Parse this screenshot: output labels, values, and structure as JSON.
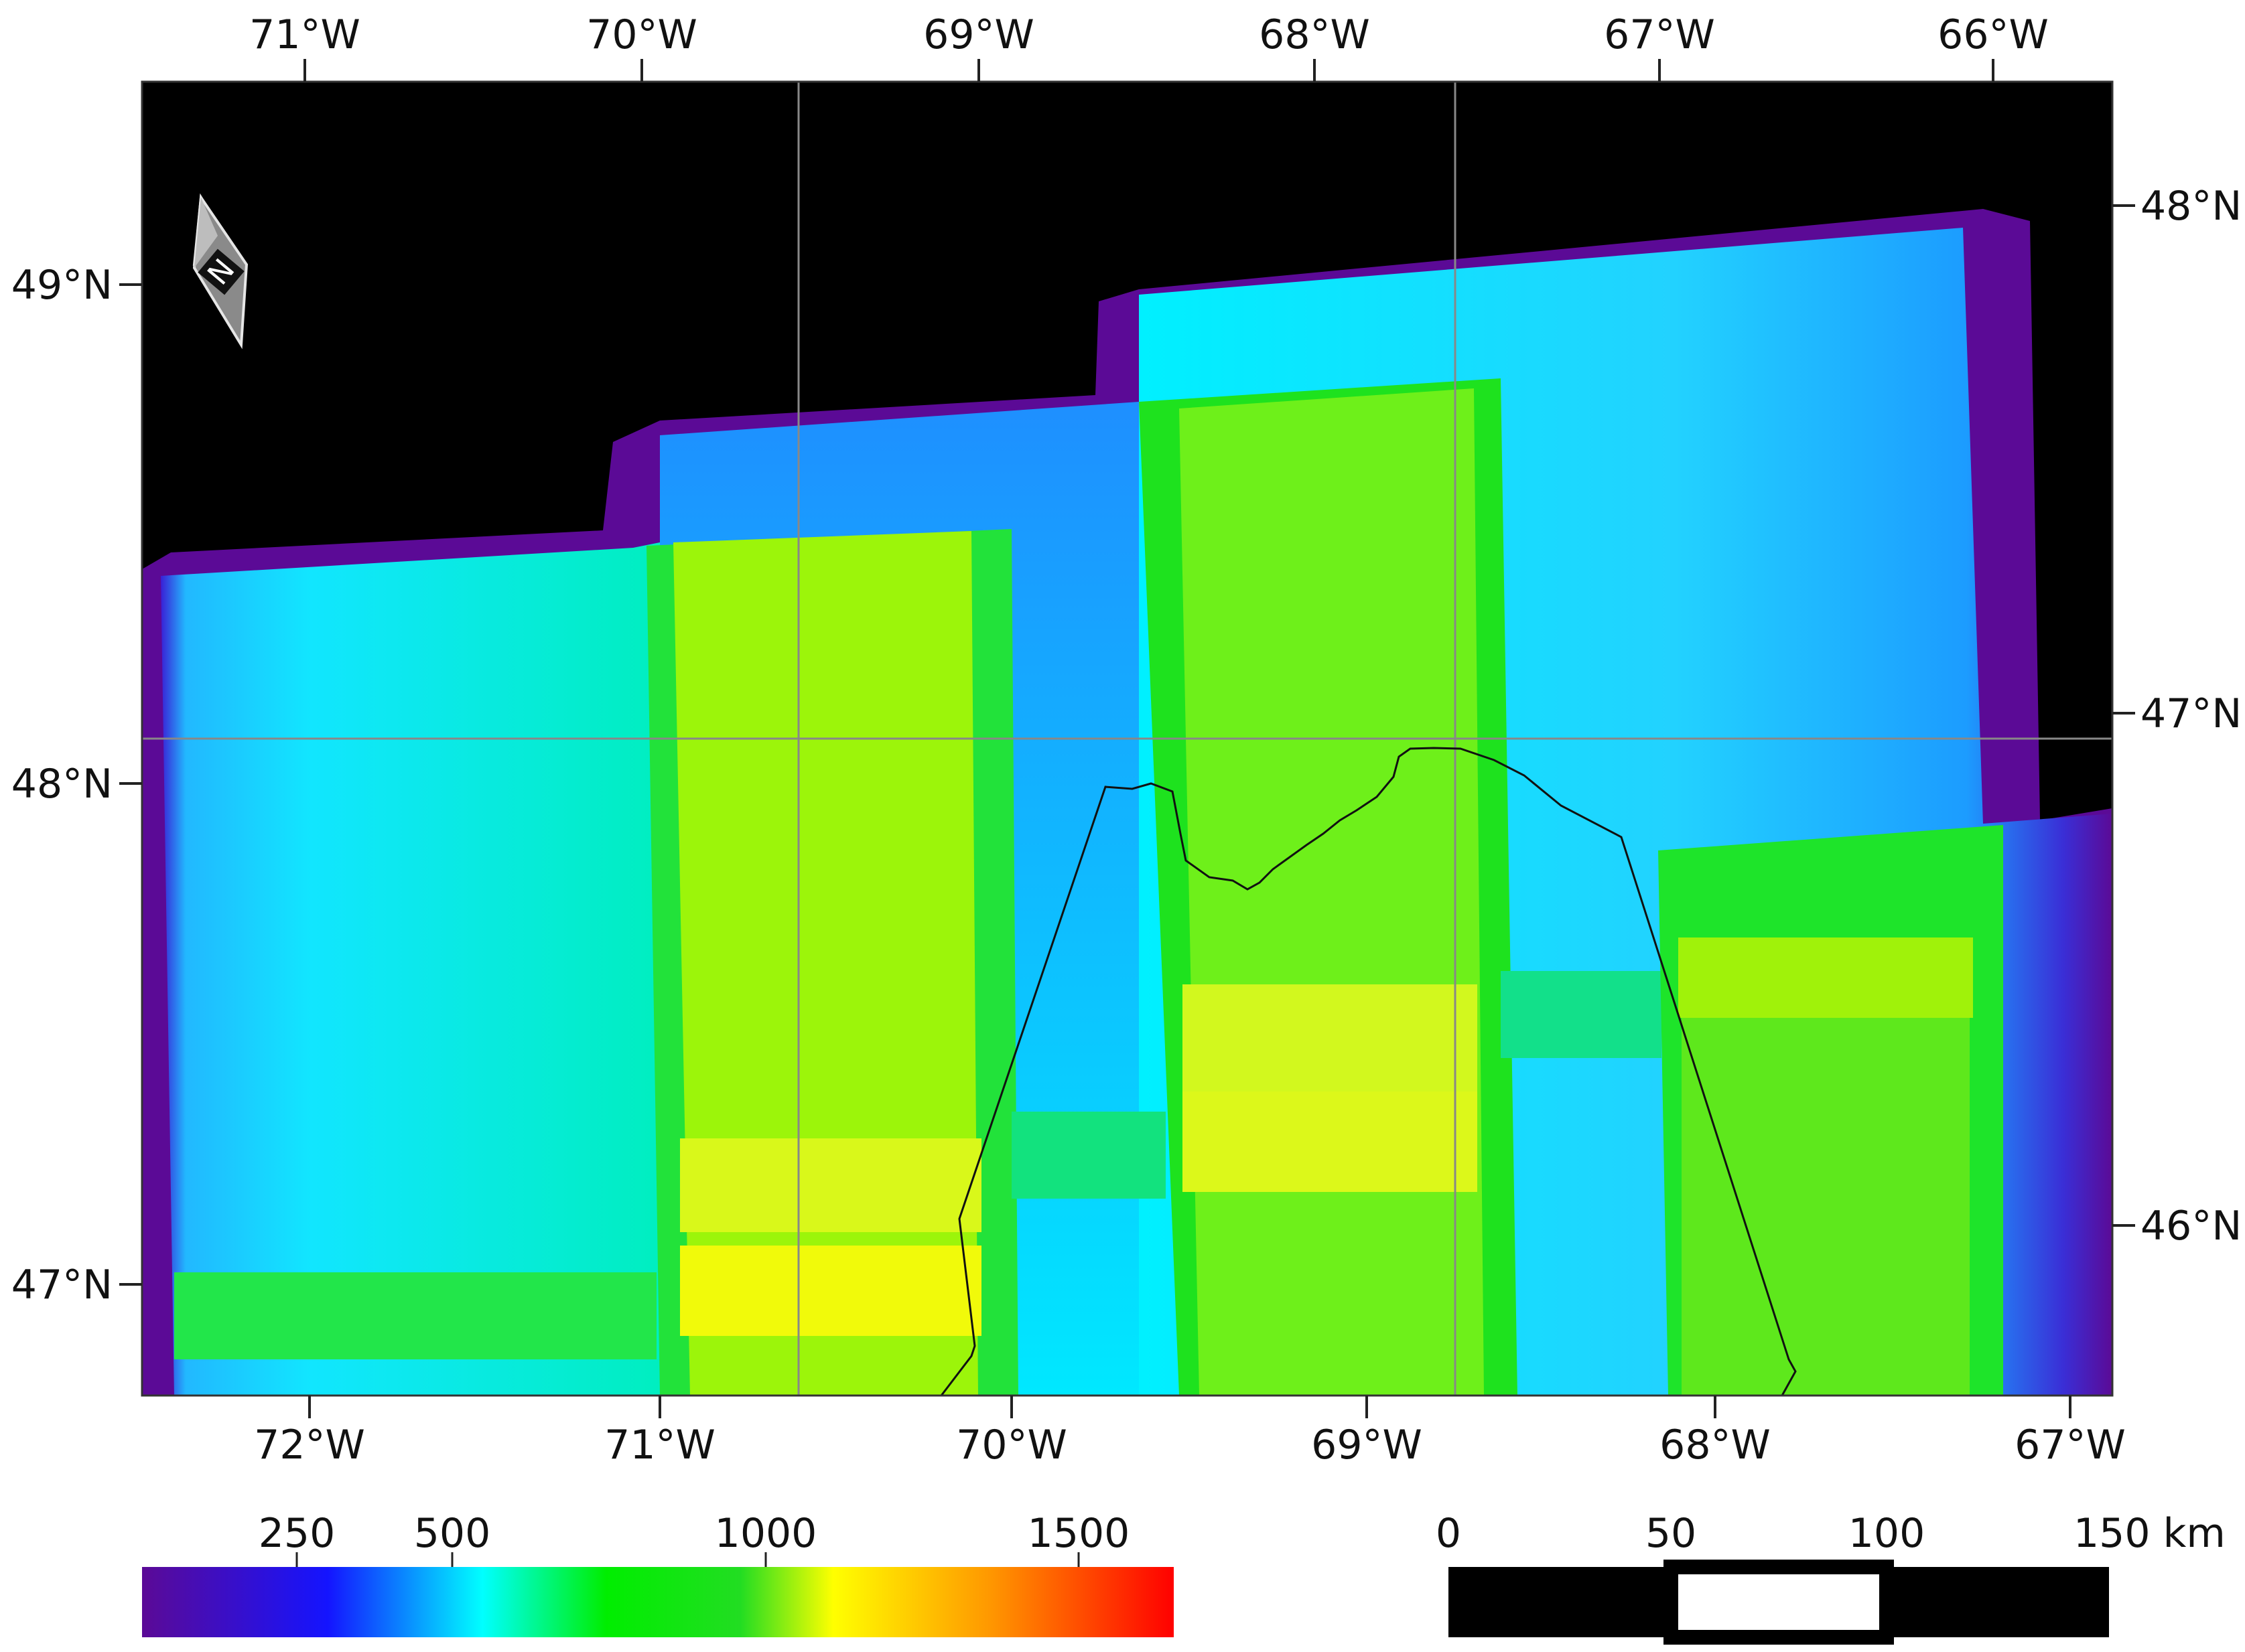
{
  "map": {
    "top_lon_labels": [
      "71°W",
      "70°W",
      "69°W",
      "68°W",
      "67°W",
      "66°W"
    ],
    "bottom_lon_labels": [
      "72°W",
      "71°W",
      "70°W",
      "69°W",
      "68°W",
      "67°W"
    ],
    "left_lat_labels": [
      "49°N",
      "48°N",
      "47°N"
    ],
    "right_lat_labels": [
      "48°N",
      "47°N",
      "46°N"
    ],
    "north_arrow_letter": "N",
    "north_arrow_icon": "north-arrow-icon"
  },
  "legend": {
    "colorbar_ticks": [
      "250",
      "500",
      "1000",
      "1500"
    ],
    "colorbar_colors": [
      "#5b0a96",
      "#1414ff",
      "#00ffff",
      "#00ee00",
      "#aaff00",
      "#ffff00",
      "#ff9900",
      "#ff0000"
    ]
  },
  "scalebar": {
    "labels": [
      "0",
      "50",
      "100",
      "150 km"
    ]
  }
}
